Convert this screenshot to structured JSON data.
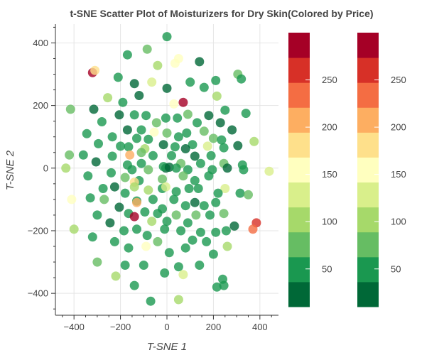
{
  "chart_data": {
    "type": "scatter",
    "title": "t-SNE Scatter Plot of Moisturizers for Dry Skin(Colored by Price)",
    "xlabel": "T-SNE 1",
    "ylabel": "T-SNE 2",
    "xlim": [
      -480,
      480
    ],
    "ylim": [
      -470,
      460
    ],
    "xticks": [
      -400,
      -200,
      0,
      200,
      400
    ],
    "yticks": [
      -400,
      -200,
      0,
      200,
      400
    ],
    "grid": true,
    "colorbar": {
      "low": 10,
      "high": 300,
      "palette": [
        "#006837",
        "#1a9850",
        "#66bd63",
        "#a6d96a",
        "#d9ef8b",
        "#ffffbf",
        "#fee08b",
        "#fdae61",
        "#f46d43",
        "#d73027",
        "#a50026"
      ],
      "ticks": [
        50,
        100,
        150,
        200,
        250
      ],
      "count": 2
    },
    "points": [
      {
        "x": 0,
        "y": 420,
        "price": 60
      },
      {
        "x": -85,
        "y": 380,
        "price": 80
      },
      {
        "x": -170,
        "y": 362,
        "price": 55
      },
      {
        "x": 50,
        "y": 350,
        "price": 160
      },
      {
        "x": 35,
        "y": 335,
        "price": 155
      },
      {
        "x": 140,
        "y": 340,
        "price": 25
      },
      {
        "x": -40,
        "y": 328,
        "price": 90
      },
      {
        "x": -320,
        "y": 305,
        "price": 275
      },
      {
        "x": -310,
        "y": 312,
        "price": 180
      },
      {
        "x": 305,
        "y": 300,
        "price": 65
      },
      {
        "x": 320,
        "y": 285,
        "price": 55
      },
      {
        "x": -210,
        "y": 290,
        "price": 50
      },
      {
        "x": 210,
        "y": 280,
        "price": 60
      },
      {
        "x": 100,
        "y": 275,
        "price": 40
      },
      {
        "x": -140,
        "y": 270,
        "price": 35
      },
      {
        "x": -65,
        "y": 275,
        "price": 130
      },
      {
        "x": 0,
        "y": 255,
        "price": 25
      },
      {
        "x": 160,
        "y": 258,
        "price": 55
      },
      {
        "x": -120,
        "y": 232,
        "price": 30
      },
      {
        "x": -255,
        "y": 225,
        "price": 95
      },
      {
        "x": 215,
        "y": 230,
        "price": 110
      },
      {
        "x": 70,
        "y": 210,
        "price": 285
      },
      {
        "x": 30,
        "y": 205,
        "price": 145
      },
      {
        "x": -190,
        "y": 210,
        "price": 60
      },
      {
        "x": -415,
        "y": 188,
        "price": 85
      },
      {
        "x": -315,
        "y": 188,
        "price": 30
      },
      {
        "x": 250,
        "y": 185,
        "price": 55
      },
      {
        "x": 340,
        "y": 175,
        "price": 45
      },
      {
        "x": -205,
        "y": 170,
        "price": 25
      },
      {
        "x": -140,
        "y": 170,
        "price": 55
      },
      {
        "x": -90,
        "y": 168,
        "price": 60
      },
      {
        "x": 90,
        "y": 172,
        "price": 70
      },
      {
        "x": 180,
        "y": 168,
        "price": 35
      },
      {
        "x": -280,
        "y": 148,
        "price": 60
      },
      {
        "x": -5,
        "y": 160,
        "price": 45
      },
      {
        "x": 45,
        "y": 160,
        "price": 55
      },
      {
        "x": -45,
        "y": 145,
        "price": 75
      },
      {
        "x": 130,
        "y": 145,
        "price": 55
      },
      {
        "x": 230,
        "y": 145,
        "price": 35
      },
      {
        "x": -170,
        "y": 122,
        "price": 30
      },
      {
        "x": -110,
        "y": 122,
        "price": 40
      },
      {
        "x": -55,
        "y": 115,
        "price": 150
      },
      {
        "x": 0,
        "y": 112,
        "price": 70
      },
      {
        "x": 85,
        "y": 112,
        "price": 60
      },
      {
        "x": 160,
        "y": 118,
        "price": 70
      },
      {
        "x": 280,
        "y": 122,
        "price": 25
      },
      {
        "x": -345,
        "y": 110,
        "price": 60
      },
      {
        "x": -235,
        "y": 100,
        "price": 40
      },
      {
        "x": -130,
        "y": 95,
        "price": 40
      },
      {
        "x": -80,
        "y": 92,
        "price": 55
      },
      {
        "x": 50,
        "y": 100,
        "price": 45
      },
      {
        "x": 200,
        "y": 95,
        "price": 70
      },
      {
        "x": 235,
        "y": 90,
        "price": 55
      },
      {
        "x": 375,
        "y": 85,
        "price": 110
      },
      {
        "x": -15,
        "y": 75,
        "price": 35
      },
      {
        "x": 110,
        "y": 75,
        "price": 55
      },
      {
        "x": 175,
        "y": 70,
        "price": 120
      },
      {
        "x": -295,
        "y": 78,
        "price": 55
      },
      {
        "x": 305,
        "y": 72,
        "price": 25
      },
      {
        "x": -200,
        "y": 70,
        "price": 55
      },
      {
        "x": -95,
        "y": 62,
        "price": 95
      },
      {
        "x": 35,
        "y": 68,
        "price": 60
      },
      {
        "x": 80,
        "y": 62,
        "price": 30
      },
      {
        "x": -165,
        "y": 68,
        "price": 60
      },
      {
        "x": 245,
        "y": 65,
        "price": 60
      },
      {
        "x": -420,
        "y": 42,
        "price": 70
      },
      {
        "x": -360,
        "y": 42,
        "price": 45
      },
      {
        "x": -235,
        "y": 38,
        "price": 55
      },
      {
        "x": -60,
        "y": 40,
        "price": 55
      },
      {
        "x": 120,
        "y": 38,
        "price": 30
      },
      {
        "x": 190,
        "y": 40,
        "price": 45
      },
      {
        "x": -160,
        "y": 42,
        "price": 195
      },
      {
        "x": 20,
        "y": 40,
        "price": 40
      },
      {
        "x": -110,
        "y": 50,
        "price": 65
      },
      {
        "x": -305,
        "y": 20,
        "price": 30
      },
      {
        "x": -170,
        "y": 10,
        "price": 55
      },
      {
        "x": -110,
        "y": 15,
        "price": 60
      },
      {
        "x": 60,
        "y": 15,
        "price": 65
      },
      {
        "x": 145,
        "y": 15,
        "price": 55
      },
      {
        "x": 245,
        "y": 15,
        "price": 75
      },
      {
        "x": -5,
        "y": 0,
        "price": 15
      },
      {
        "x": -15,
        "y": 5,
        "price": 40
      },
      {
        "x": 10,
        "y": 3,
        "price": 35
      },
      {
        "x": 325,
        "y": 10,
        "price": 55
      },
      {
        "x": -435,
        "y": 0,
        "price": 90
      },
      {
        "x": -240,
        "y": -15,
        "price": 45
      },
      {
        "x": -150,
        "y": -5,
        "price": 55
      },
      {
        "x": -80,
        "y": -5,
        "price": 70
      },
      {
        "x": 40,
        "y": 0,
        "price": 40
      },
      {
        "x": 90,
        "y": -5,
        "price": 55
      },
      {
        "x": 195,
        "y": -5,
        "price": 55
      },
      {
        "x": 260,
        "y": 0,
        "price": 25
      },
      {
        "x": 330,
        "y": -5,
        "price": 55
      },
      {
        "x": 440,
        "y": -10,
        "price": 140
      },
      {
        "x": -340,
        "y": -25,
        "price": 45
      },
      {
        "x": -180,
        "y": -30,
        "price": 70
      },
      {
        "x": 70,
        "y": -25,
        "price": 70
      },
      {
        "x": 120,
        "y": -40,
        "price": 60
      },
      {
        "x": 180,
        "y": -25,
        "price": 60
      },
      {
        "x": -120,
        "y": -40,
        "price": 60
      },
      {
        "x": -20,
        "y": -35,
        "price": 80
      },
      {
        "x": -140,
        "y": -45,
        "price": 175
      },
      {
        "x": -225,
        "y": -60,
        "price": 30
      },
      {
        "x": -275,
        "y": -65,
        "price": 50
      },
      {
        "x": -140,
        "y": -60,
        "price": 100
      },
      {
        "x": -20,
        "y": -65,
        "price": 55
      },
      {
        "x": -5,
        "y": -60,
        "price": 130
      },
      {
        "x": 95,
        "y": -65,
        "price": 55
      },
      {
        "x": 135,
        "y": -65,
        "price": 45
      },
      {
        "x": 250,
        "y": -65,
        "price": 140
      },
      {
        "x": -80,
        "y": -70,
        "price": 90
      },
      {
        "x": 40,
        "y": -75,
        "price": 45
      },
      {
        "x": -180,
        "y": -80,
        "price": 55
      },
      {
        "x": 220,
        "y": -80,
        "price": 55
      },
      {
        "x": -330,
        "y": -95,
        "price": 50
      },
      {
        "x": -410,
        "y": -100,
        "price": 150
      },
      {
        "x": -270,
        "y": -100,
        "price": 70
      },
      {
        "x": -130,
        "y": -105,
        "price": 60
      },
      {
        "x": 30,
        "y": -100,
        "price": 40
      },
      {
        "x": -60,
        "y": -100,
        "price": 45
      },
      {
        "x": 120,
        "y": -110,
        "price": 25
      },
      {
        "x": 315,
        "y": -80,
        "price": 45
      },
      {
        "x": 350,
        "y": -85,
        "price": 65
      },
      {
        "x": -130,
        "y": -110,
        "price": 210
      },
      {
        "x": -20,
        "y": -130,
        "price": 40
      },
      {
        "x": 80,
        "y": -120,
        "price": 40
      },
      {
        "x": 160,
        "y": -120,
        "price": 40
      },
      {
        "x": 210,
        "y": -110,
        "price": 55
      },
      {
        "x": -205,
        "y": -125,
        "price": 30
      },
      {
        "x": -300,
        "y": -150,
        "price": 55
      },
      {
        "x": -165,
        "y": -145,
        "price": 55
      },
      {
        "x": -95,
        "y": -140,
        "price": 45
      },
      {
        "x": -40,
        "y": -145,
        "price": 55
      },
      {
        "x": 40,
        "y": -150,
        "price": 65
      },
      {
        "x": 125,
        "y": -150,
        "price": 70
      },
      {
        "x": 185,
        "y": -150,
        "price": 55
      },
      {
        "x": 245,
        "y": -145,
        "price": 80
      },
      {
        "x": -140,
        "y": -155,
        "price": 275
      },
      {
        "x": -245,
        "y": -175,
        "price": 25
      },
      {
        "x": -65,
        "y": -170,
        "price": 100
      },
      {
        "x": 0,
        "y": -170,
        "price": 40
      },
      {
        "x": 90,
        "y": -175,
        "price": 55
      },
      {
        "x": 290,
        "y": -185,
        "price": 30
      },
      {
        "x": 385,
        "y": -175,
        "price": 255
      },
      {
        "x": 370,
        "y": -195,
        "price": 230
      },
      {
        "x": -400,
        "y": -195,
        "price": 100
      },
      {
        "x": -185,
        "y": -200,
        "price": 50
      },
      {
        "x": -130,
        "y": -195,
        "price": 60
      },
      {
        "x": -10,
        "y": -195,
        "price": 55
      },
      {
        "x": 60,
        "y": -200,
        "price": 55
      },
      {
        "x": 145,
        "y": -205,
        "price": 45
      },
      {
        "x": 210,
        "y": -205,
        "price": 55
      },
      {
        "x": 255,
        "y": -200,
        "price": 55
      },
      {
        "x": -320,
        "y": -220,
        "price": 55
      },
      {
        "x": -85,
        "y": -215,
        "price": 55
      },
      {
        "x": -225,
        "y": -235,
        "price": 55
      },
      {
        "x": -40,
        "y": -235,
        "price": 85
      },
      {
        "x": 110,
        "y": -230,
        "price": 55
      },
      {
        "x": 170,
        "y": -235,
        "price": 55
      },
      {
        "x": -165,
        "y": -255,
        "price": 60
      },
      {
        "x": -90,
        "y": -250,
        "price": 150
      },
      {
        "x": 80,
        "y": -255,
        "price": 55
      },
      {
        "x": 260,
        "y": -250,
        "price": 95
      },
      {
        "x": 10,
        "y": -270,
        "price": 55
      },
      {
        "x": 200,
        "y": -275,
        "price": 55
      },
      {
        "x": -300,
        "y": -300,
        "price": 80
      },
      {
        "x": -180,
        "y": -310,
        "price": 55
      },
      {
        "x": -100,
        "y": -310,
        "price": 55
      },
      {
        "x": 50,
        "y": -315,
        "price": 55
      },
      {
        "x": 140,
        "y": -310,
        "price": 55
      },
      {
        "x": -220,
        "y": -345,
        "price": 110
      },
      {
        "x": -10,
        "y": -335,
        "price": 55
      },
      {
        "x": 70,
        "y": -340,
        "price": 130
      },
      {
        "x": 240,
        "y": -355,
        "price": 55
      },
      {
        "x": -140,
        "y": -375,
        "price": 55
      },
      {
        "x": 215,
        "y": -380,
        "price": 55
      },
      {
        "x": 245,
        "y": -375,
        "price": 55
      },
      {
        "x": 50,
        "y": -420,
        "price": 90
      },
      {
        "x": -70,
        "y": -425,
        "price": 55
      }
    ]
  }
}
